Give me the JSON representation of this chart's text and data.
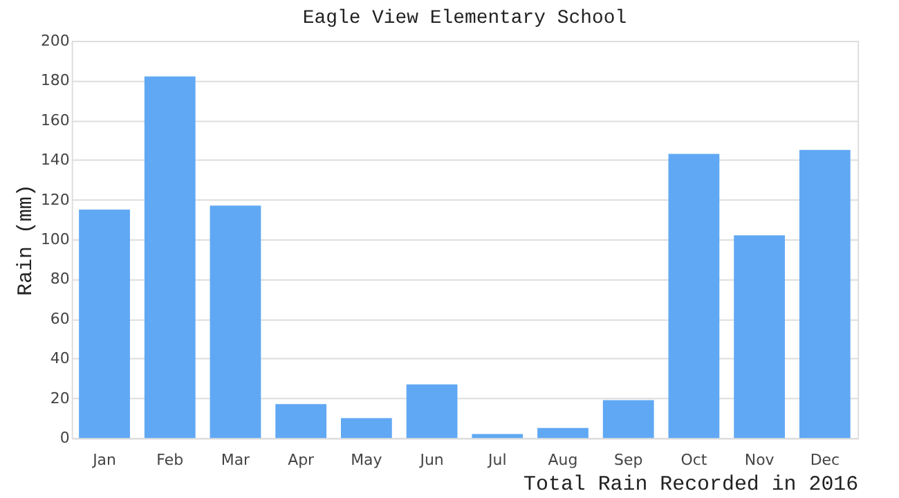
{
  "chart_data": {
    "type": "bar",
    "title": "Eagle View Elementary School",
    "xlabel": "Total Rain Recorded in 2016",
    "ylabel": "Rain (mm)",
    "categories": [
      "Jan",
      "Feb",
      "Mar",
      "Apr",
      "May",
      "Jun",
      "Jul",
      "Aug",
      "Sep",
      "Oct",
      "Nov",
      "Dec"
    ],
    "values": [
      115,
      182,
      117,
      17,
      10,
      27,
      2,
      5,
      19,
      143,
      102,
      145
    ],
    "color": "#60a8f4",
    "ylim": [
      0,
      200
    ],
    "yticks": [
      0,
      20,
      40,
      60,
      80,
      100,
      120,
      140,
      160,
      180,
      200
    ],
    "grid": "y"
  }
}
